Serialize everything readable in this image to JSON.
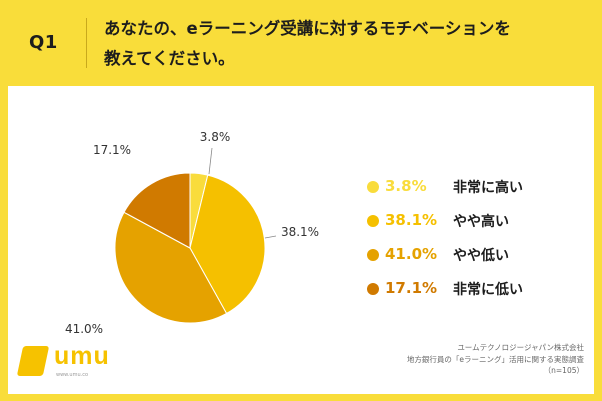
{
  "header": {
    "q_label": "Q1",
    "question_line1": "あなたの、eラーニング受講に対するモチベーションを",
    "question_line2": "教えてください。"
  },
  "chart_data": {
    "type": "pie",
    "categories": [
      "非常に高い",
      "やや高い",
      "やや低い",
      "非常に低い"
    ],
    "values": [
      3.8,
      38.1,
      41.0,
      17.1
    ],
    "labels": [
      "3.8%",
      "38.1%",
      "41.0%",
      "17.1%"
    ],
    "colors": [
      "#f9dc3c",
      "#f5c000",
      "#e5a200",
      "#d07a00"
    ],
    "start_angle_deg": 0,
    "direction": "clockwise",
    "legend_position": "right"
  },
  "legend": [
    {
      "value": "3.8%",
      "name": "非常に高い",
      "color": "#f9dc3c"
    },
    {
      "value": "38.1%",
      "name": "やや高い",
      "color": "#f5c000"
    },
    {
      "value": "41.0%",
      "name": "やや低い",
      "color": "#e5a200"
    },
    {
      "value": "17.1%",
      "name": "非常に低い",
      "color": "#d07a00"
    }
  ],
  "logo": {
    "text": "umu",
    "url": "www.umu.co"
  },
  "source": {
    "line1": "ユームテクノロジージャパン株式会社",
    "line2": "地方銀行員の「eラーニング」活用に関する実態調査",
    "line3": "（n=105）"
  }
}
